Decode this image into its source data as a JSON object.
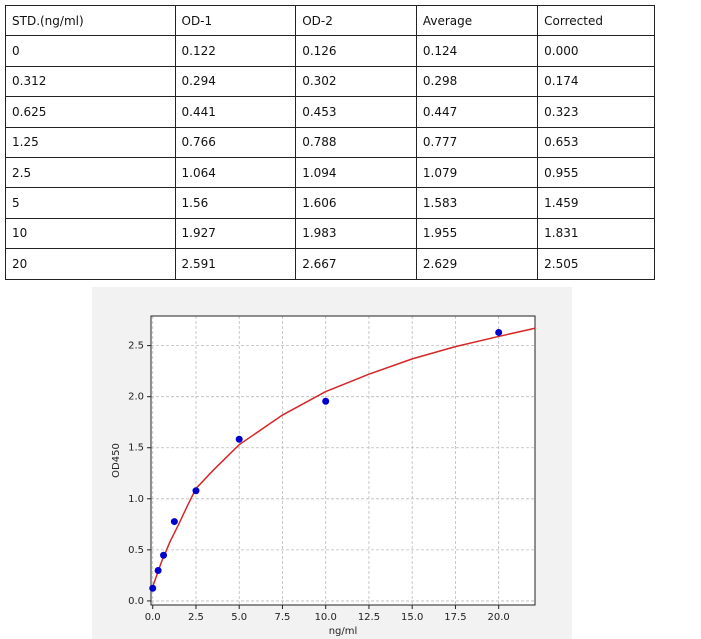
{
  "table": {
    "header": [
      "STD.(ng/ml)",
      "OD-1",
      "OD-2",
      "Average",
      "Corrected"
    ],
    "rows": [
      [
        "0",
        "0.122",
        "0.126",
        "0.124",
        "0.000"
      ],
      [
        "0.312",
        "0.294",
        "0.302",
        "0.298",
        "0.174"
      ],
      [
        "0.625",
        "0.441",
        "0.453",
        "0.447",
        "0.323"
      ],
      [
        "1.25",
        "0.766",
        "0.788",
        "0.777",
        "0.653"
      ],
      [
        "2.5",
        "1.064",
        "1.094",
        "1.079",
        "0.955"
      ],
      [
        "5",
        "1.56",
        "1.606",
        "1.583",
        "1.459"
      ],
      [
        "10",
        "1.927",
        "1.983",
        "1.955",
        "1.831"
      ],
      [
        "20",
        "2.591",
        "2.667",
        "2.629",
        "2.505"
      ]
    ]
  },
  "chart_data": {
    "type": "scatter",
    "xlabel": "ng/ml",
    "ylabel": "OD450",
    "xlim": [
      -0.1,
      22.1
    ],
    "ylim": [
      -0.04,
      2.79
    ],
    "xticks": [
      {
        "value": 0,
        "label": "0.0"
      },
      2.5,
      {
        "value": 5,
        "label": "5.0"
      },
      7.5,
      {
        "value": 10,
        "label": "10.0"
      },
      12.5,
      {
        "value": 15,
        "label": "15.0"
      },
      17.5,
      {
        "value": 20,
        "label": "20.0"
      }
    ],
    "yticks": [
      {
        "value": 0,
        "label": "0.0"
      },
      0.5,
      {
        "value": 1,
        "label": "1.0"
      },
      1.5,
      {
        "value": 2,
        "label": "2.0"
      },
      2.5
    ],
    "grid": true,
    "series": [
      {
        "type": "line",
        "color": "#d62728",
        "x": [
          0,
          0.5,
          1,
          1.5,
          2,
          2.5,
          3.5,
          5,
          7.5,
          10,
          12.5,
          15,
          17.5,
          20,
          22.1
        ],
        "values": [
          0.14,
          0.38,
          0.58,
          0.75,
          0.93,
          1.1,
          1.28,
          1.53,
          1.82,
          2.05,
          2.22,
          2.37,
          2.49,
          2.59,
          2.67
        ]
      },
      {
        "type": "scatter",
        "color": "#0000cc",
        "x": [
          0,
          0.312,
          0.625,
          1.25,
          2.5,
          5,
          10,
          20
        ],
        "values": [
          0.124,
          0.298,
          0.447,
          0.777,
          1.079,
          1.583,
          1.955,
          2.629
        ]
      }
    ]
  }
}
